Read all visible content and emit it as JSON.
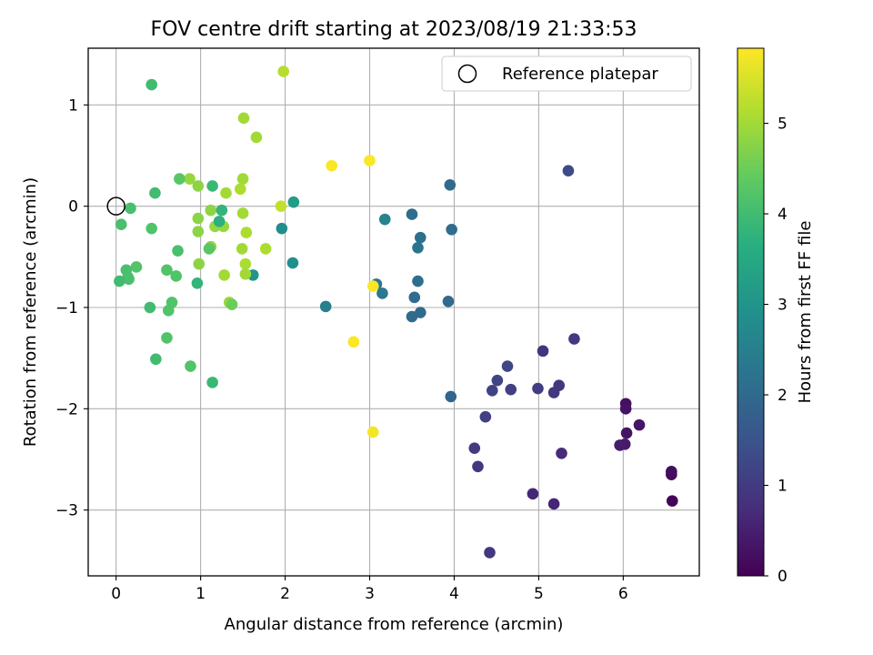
{
  "chart_data": {
    "type": "scatter",
    "title": "FOV centre drift starting at 2023/08/19 21:33:53",
    "xlabel": "Angular distance from reference (arcmin)",
    "ylabel": "Rotation from reference (arcmin)",
    "xlim": [
      -0.33,
      6.9
    ],
    "ylim": [
      -3.65,
      1.56
    ],
    "xticks": [
      0,
      1,
      2,
      3,
      4,
      5,
      6
    ],
    "yticks": [
      -3,
      -2,
      -1,
      0,
      1
    ],
    "grid": true,
    "colorbar": {
      "label": "Hours from first FF file",
      "colormap": "viridis",
      "range": [
        0,
        5.83
      ],
      "ticks": [
        0,
        1,
        2,
        3,
        4,
        5
      ]
    },
    "legend": {
      "position": "top-right",
      "entries": [
        {
          "label": "Reference platepar",
          "marker": "open-circle",
          "x": 0,
          "y": 0
        }
      ]
    },
    "points": [
      {
        "x": 6.58,
        "y": -2.91,
        "c": 0.05
      },
      {
        "x": 6.57,
        "y": -2.65,
        "c": 0.15
      },
      {
        "x": 6.57,
        "y": -2.62,
        "c": 0.2
      },
      {
        "x": 6.19,
        "y": -2.16,
        "c": 0.35
      },
      {
        "x": 6.04,
        "y": -2.24,
        "c": 0.3
      },
      {
        "x": 6.03,
        "y": -1.95,
        "c": 0.25
      },
      {
        "x": 6.03,
        "y": -2.0,
        "c": 0.3
      },
      {
        "x": 6.02,
        "y": -2.35,
        "c": 0.4
      },
      {
        "x": 5.96,
        "y": -2.36,
        "c": 0.45
      },
      {
        "x": 5.27,
        "y": -2.44,
        "c": 0.7
      },
      {
        "x": 5.18,
        "y": -2.94,
        "c": 0.6
      },
      {
        "x": 4.93,
        "y": -2.84,
        "c": 0.65
      },
      {
        "x": 4.42,
        "y": -3.42,
        "c": 0.9
      },
      {
        "x": 4.28,
        "y": -2.57,
        "c": 0.95
      },
      {
        "x": 4.24,
        "y": -2.39,
        "c": 1.0
      },
      {
        "x": 4.37,
        "y": -2.08,
        "c": 1.1
      },
      {
        "x": 4.45,
        "y": -1.82,
        "c": 1.15
      },
      {
        "x": 4.51,
        "y": -1.72,
        "c": 1.2
      },
      {
        "x": 4.63,
        "y": -1.58,
        "c": 1.25
      },
      {
        "x": 4.67,
        "y": -1.81,
        "c": 1.1
      },
      {
        "x": 4.99,
        "y": -1.8,
        "c": 1.05
      },
      {
        "x": 5.05,
        "y": -1.43,
        "c": 0.85
      },
      {
        "x": 5.18,
        "y": -1.84,
        "c": 0.9
      },
      {
        "x": 5.24,
        "y": -1.77,
        "c": 0.95
      },
      {
        "x": 5.42,
        "y": -1.31,
        "c": 0.95
      },
      {
        "x": 5.35,
        "y": 0.35,
        "c": 1.3
      },
      {
        "x": 3.96,
        "y": -1.88,
        "c": 1.9
      },
      {
        "x": 3.95,
        "y": 0.21,
        "c": 2.0
      },
      {
        "x": 3.97,
        "y": -0.23,
        "c": 2.05
      },
      {
        "x": 3.93,
        "y": -0.94,
        "c": 2.0
      },
      {
        "x": 3.5,
        "y": -0.08,
        "c": 2.1
      },
      {
        "x": 3.6,
        "y": -0.31,
        "c": 2.15
      },
      {
        "x": 3.57,
        "y": -0.41,
        "c": 2.2
      },
      {
        "x": 3.57,
        "y": -0.74,
        "c": 2.1
      },
      {
        "x": 3.53,
        "y": -0.9,
        "c": 2.05
      },
      {
        "x": 3.6,
        "y": -1.05,
        "c": 2.0
      },
      {
        "x": 3.5,
        "y": -1.09,
        "c": 2.0
      },
      {
        "x": 3.18,
        "y": -0.13,
        "c": 2.6
      },
      {
        "x": 3.08,
        "y": -0.77,
        "c": 2.3
      },
      {
        "x": 3.15,
        "y": -0.86,
        "c": 2.3
      },
      {
        "x": 2.48,
        "y": -0.99,
        "c": 2.5
      },
      {
        "x": 2.1,
        "y": 0.04,
        "c": 3.2
      },
      {
        "x": 2.09,
        "y": -0.56,
        "c": 2.9
      },
      {
        "x": 1.96,
        "y": -0.22,
        "c": 2.8
      },
      {
        "x": 1.62,
        "y": -0.68,
        "c": 3.0
      },
      {
        "x": 3.0,
        "y": 0.45,
        "c": 5.8
      },
      {
        "x": 2.55,
        "y": 0.4,
        "c": 5.8
      },
      {
        "x": 3.04,
        "y": -0.79,
        "c": 5.85
      },
      {
        "x": 2.81,
        "y": -1.34,
        "c": 5.8
      },
      {
        "x": 3.04,
        "y": -2.23,
        "c": 5.75
      },
      {
        "x": 1.98,
        "y": 1.33,
        "c": 5.2
      },
      {
        "x": 1.95,
        "y": 0.0,
        "c": 5.3
      },
      {
        "x": 1.66,
        "y": 0.68,
        "c": 5.0
      },
      {
        "x": 1.51,
        "y": 0.87,
        "c": 5.0
      },
      {
        "x": 1.5,
        "y": 0.27,
        "c": 5.0
      },
      {
        "x": 1.47,
        "y": 0.17,
        "c": 5.1
      },
      {
        "x": 1.3,
        "y": 0.13,
        "c": 5.0
      },
      {
        "x": 1.5,
        "y": -0.07,
        "c": 5.0
      },
      {
        "x": 1.54,
        "y": -0.26,
        "c": 5.1
      },
      {
        "x": 1.49,
        "y": -0.42,
        "c": 5.0
      },
      {
        "x": 1.53,
        "y": -0.57,
        "c": 5.1
      },
      {
        "x": 1.53,
        "y": -0.67,
        "c": 5.0
      },
      {
        "x": 1.77,
        "y": -0.42,
        "c": 5.1
      },
      {
        "x": 1.34,
        "y": -0.95,
        "c": 4.9
      },
      {
        "x": 1.28,
        "y": -0.68,
        "c": 5.0
      },
      {
        "x": 1.27,
        "y": -0.2,
        "c": 4.9
      },
      {
        "x": 1.17,
        "y": -0.2,
        "c": 4.9
      },
      {
        "x": 1.12,
        "y": -0.04,
        "c": 4.8
      },
      {
        "x": 1.12,
        "y": -0.4,
        "c": 4.8
      },
      {
        "x": 0.97,
        "y": 0.2,
        "c": 4.8
      },
      {
        "x": 0.97,
        "y": -0.12,
        "c": 4.8
      },
      {
        "x": 0.97,
        "y": -0.25,
        "c": 4.8
      },
      {
        "x": 0.98,
        "y": -0.57,
        "c": 4.8
      },
      {
        "x": 0.87,
        "y": 0.27,
        "c": 4.9
      },
      {
        "x": 1.37,
        "y": -0.97,
        "c": 4.5
      },
      {
        "x": 1.1,
        "y": -0.42,
        "c": 4.3
      },
      {
        "x": 0.75,
        "y": 0.27,
        "c": 4.3
      },
      {
        "x": 0.73,
        "y": -0.44,
        "c": 4.1
      },
      {
        "x": 0.71,
        "y": -0.69,
        "c": 4.2
      },
      {
        "x": 0.6,
        "y": -0.63,
        "c": 4.2
      },
      {
        "x": 0.66,
        "y": -0.95,
        "c": 4.2
      },
      {
        "x": 0.62,
        "y": -1.03,
        "c": 4.2
      },
      {
        "x": 0.6,
        "y": -1.3,
        "c": 4.2
      },
      {
        "x": 0.88,
        "y": -1.58,
        "c": 4.2
      },
      {
        "x": 0.96,
        "y": -0.76,
        "c": 3.8
      },
      {
        "x": 1.14,
        "y": 0.2,
        "c": 3.9
      },
      {
        "x": 1.25,
        "y": -0.04,
        "c": 3.8
      },
      {
        "x": 1.22,
        "y": -0.15,
        "c": 3.7
      },
      {
        "x": 1.14,
        "y": -1.74,
        "c": 3.9
      },
      {
        "x": 0.46,
        "y": 0.13,
        "c": 4.0
      },
      {
        "x": 0.42,
        "y": 1.2,
        "c": 4.0
      },
      {
        "x": 0.42,
        "y": -0.22,
        "c": 4.2
      },
      {
        "x": 0.47,
        "y": -1.51,
        "c": 4.0
      },
      {
        "x": 0.4,
        "y": -1.0,
        "c": 4.0
      },
      {
        "x": 0.17,
        "y": -0.02,
        "c": 4.1
      },
      {
        "x": 0.06,
        "y": -0.18,
        "c": 4.1
      },
      {
        "x": 0.24,
        "y": -0.6,
        "c": 4.2
      },
      {
        "x": 0.12,
        "y": -0.63,
        "c": 4.1
      },
      {
        "x": 0.14,
        "y": -0.7,
        "c": 4.1
      },
      {
        "x": 0.15,
        "y": -0.72,
        "c": 4.1
      },
      {
        "x": 0.04,
        "y": -0.74,
        "c": 4.0
      }
    ]
  }
}
